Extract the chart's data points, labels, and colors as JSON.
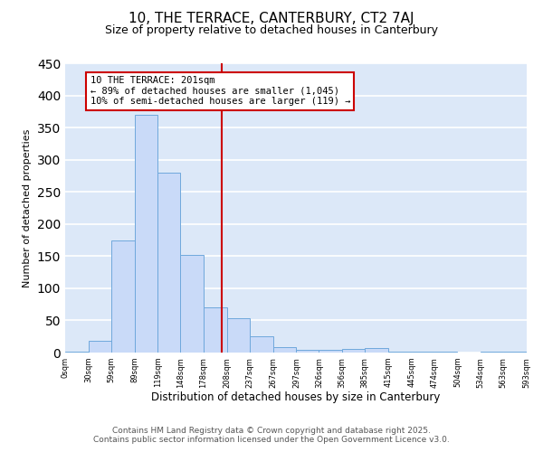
{
  "title": "10, THE TERRACE, CANTERBURY, CT2 7AJ",
  "subtitle": "Size of property relative to detached houses in Canterbury",
  "xlabel": "Distribution of detached houses by size in Canterbury",
  "ylabel": "Number of detached properties",
  "bin_edges": [
    0,
    30,
    59,
    89,
    119,
    148,
    178,
    208,
    237,
    267,
    297,
    326,
    356,
    385,
    415,
    445,
    474,
    504,
    534,
    563,
    593
  ],
  "bin_labels": [
    "0sqm",
    "30sqm",
    "59sqm",
    "89sqm",
    "119sqm",
    "148sqm",
    "178sqm",
    "208sqm",
    "237sqm",
    "267sqm",
    "297sqm",
    "326sqm",
    "356sqm",
    "385sqm",
    "415sqm",
    "445sqm",
    "474sqm",
    "504sqm",
    "534sqm",
    "563sqm",
    "593sqm"
  ],
  "counts": [
    2,
    18,
    175,
    370,
    280,
    152,
    70,
    54,
    25,
    9,
    4,
    4,
    5,
    7,
    1,
    1,
    1,
    0,
    1,
    1
  ],
  "bar_facecolor": "#c9daf8",
  "bar_edgecolor": "#6fa8dc",
  "vline_x": 201,
  "vline_color": "#cc0000",
  "annotation_line1": "10 THE TERRACE: 201sqm",
  "annotation_line2": "← 89% of detached houses are smaller (1,045)",
  "annotation_line3": "10% of semi-detached houses are larger (119) →",
  "annotation_box_facecolor": "white",
  "annotation_box_edgecolor": "#cc0000",
  "ylim": [
    0,
    450
  ],
  "yticks": [
    0,
    50,
    100,
    150,
    200,
    250,
    300,
    350,
    400,
    450
  ],
  "background_color": "#dce8f8",
  "grid_color": "white",
  "footnote1": "Contains HM Land Registry data © Crown copyright and database right 2025.",
  "footnote2": "Contains public sector information licensed under the Open Government Licence v3.0.",
  "title_fontsize": 11,
  "subtitle_fontsize": 9,
  "annotation_fontsize": 7.5,
  "footnote_fontsize": 6.5,
  "ylabel_fontsize": 8,
  "xlabel_fontsize": 8.5
}
